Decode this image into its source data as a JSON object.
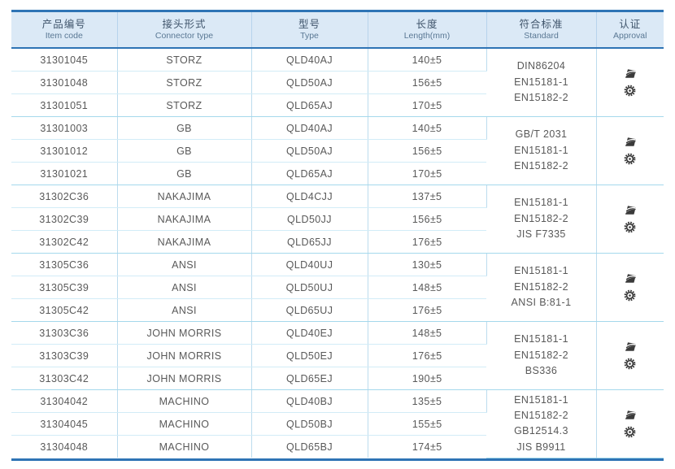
{
  "colors": {
    "accent_blue": "#2e74b5",
    "header_background": "#dbe9f6",
    "row_separator": "#d2ecf7",
    "group_separator": "#a5d8ec",
    "body_text": "#595959"
  },
  "table": {
    "columns": [
      {
        "zh": "产品编号",
        "en": "Item code"
      },
      {
        "zh": "接头形式",
        "en": "Connector type"
      },
      {
        "zh": "型号",
        "en": "Type"
      },
      {
        "zh": "长度",
        "en": "Length(mm)"
      },
      {
        "zh": "符合标准",
        "en": "Standard"
      },
      {
        "zh": "认证",
        "en": "Approval"
      }
    ],
    "groups": [
      {
        "rows": [
          {
            "item": "31301045",
            "connector": "STORZ",
            "type": "QLD40AJ",
            "length": "140±5"
          },
          {
            "item": "31301048",
            "connector": "STORZ",
            "type": "QLD50AJ",
            "length": "156±5"
          },
          {
            "item": "31301051",
            "connector": "STORZ",
            "type": "QLD65AJ",
            "length": "170±5"
          }
        ],
        "standards": [
          "DIN86204",
          "EN15181-1",
          "EN15182-2"
        ],
        "approval_icons": [
          "certification-logo-icon",
          "wheelmark-icon"
        ]
      },
      {
        "rows": [
          {
            "item": "31301003",
            "connector": "GB",
            "type": "QLD40AJ",
            "length": "140±5"
          },
          {
            "item": "31301012",
            "connector": "GB",
            "type": "QLD50AJ",
            "length": "156±5"
          },
          {
            "item": "31301021",
            "connector": "GB",
            "type": "QLD65AJ",
            "length": "170±5"
          }
        ],
        "standards": [
          "GB/T 2031",
          "EN15181-1",
          "EN15182-2"
        ],
        "approval_icons": [
          "certification-logo-icon",
          "wheelmark-icon"
        ]
      },
      {
        "rows": [
          {
            "item": "31302C36",
            "connector": "NAKAJIMA",
            "type": "QLD4CJJ",
            "length": "137±5"
          },
          {
            "item": "31302C39",
            "connector": "NAKAJIMA",
            "type": "QLD50JJ",
            "length": "156±5"
          },
          {
            "item": "31302C42",
            "connector": "NAKAJIMA",
            "type": "QLD65JJ",
            "length": "176±5"
          }
        ],
        "standards": [
          "EN15181-1",
          "EN15182-2",
          "JIS F7335"
        ],
        "approval_icons": [
          "certification-logo-icon",
          "wheelmark-icon"
        ]
      },
      {
        "rows": [
          {
            "item": "31305C36",
            "connector": "ANSI",
            "type": "QLD40UJ",
            "length": "130±5"
          },
          {
            "item": "31305C39",
            "connector": "ANSI",
            "type": "QLD50UJ",
            "length": "148±5"
          },
          {
            "item": "31305C42",
            "connector": "ANSI",
            "type": "QLD65UJ",
            "length": "176±5"
          }
        ],
        "standards": [
          "EN15181-1",
          "EN15182-2",
          "ANSI B:81-1"
        ],
        "approval_icons": [
          "certification-logo-icon",
          "wheelmark-icon"
        ]
      },
      {
        "rows": [
          {
            "item": "31303C36",
            "connector": "JOHN MORRIS",
            "type": "QLD40EJ",
            "length": "148±5"
          },
          {
            "item": "31303C39",
            "connector": "JOHN MORRIS",
            "type": "QLD50EJ",
            "length": "176±5"
          },
          {
            "item": "31303C42",
            "connector": "JOHN MORRIS",
            "type": "QLD65EJ",
            "length": "190±5"
          }
        ],
        "standards": [
          "EN15181-1",
          "EN15182-2",
          "BS336"
        ],
        "approval_icons": [
          "certification-logo-icon",
          "wheelmark-icon"
        ]
      },
      {
        "rows": [
          {
            "item": "31304042",
            "connector": "MACHINO",
            "type": "QLD40BJ",
            "length": "135±5"
          },
          {
            "item": "31304045",
            "connector": "MACHINO",
            "type": "QLD50BJ",
            "length": "155±5"
          },
          {
            "item": "31304048",
            "connector": "MACHINO",
            "type": "QLD65BJ",
            "length": "174±5"
          }
        ],
        "standards": [
          "EN15181-1",
          "EN15182-2",
          "GB12514.3",
          "JIS B9911"
        ],
        "approval_icons": [
          "certification-logo-icon",
          "wheelmark-icon"
        ]
      }
    ]
  }
}
